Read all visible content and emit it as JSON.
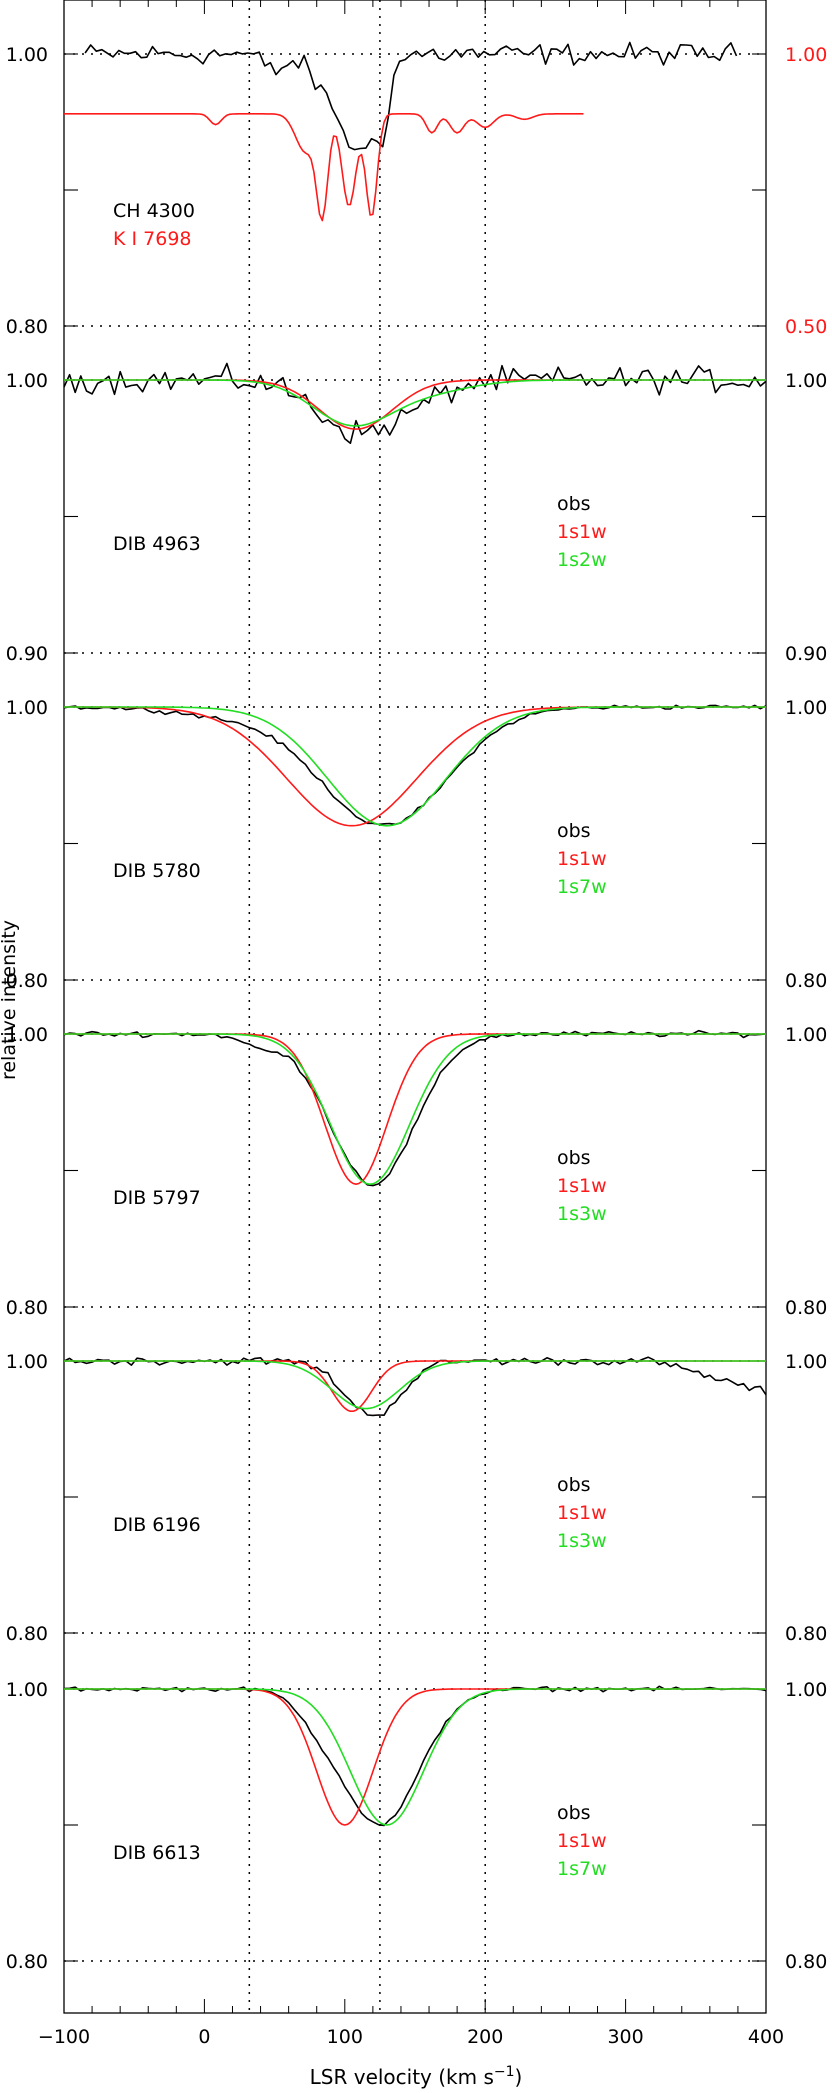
{
  "figure": {
    "xlabel": "LSR velocity (km s",
    "xlabel_sup": "−1",
    "xlabel_close": ")",
    "ylabel": "relative intensity",
    "x_tick_labels": [
      "−100",
      "0",
      "100",
      "200",
      "300",
      "400"
    ]
  },
  "colors": {
    "obs": "#000000",
    "model_a": "#ff1a1a",
    "model_b": "#22dd22"
  },
  "chart_data": {
    "type": "line",
    "xlim": [
      -100,
      400
    ],
    "x_ticks": [
      -100,
      0,
      100,
      200,
      300,
      400
    ],
    "reference_lines_x": [
      32,
      125,
      200
    ],
    "panels": [
      {
        "id": "ch-ki",
        "ylim": [
          0.8,
          1.0
        ],
        "ylim_right": [
          0.5,
          1.0
        ],
        "left_labels": [
          "1.00",
          "0.80"
        ],
        "right_labels": [
          "1.00",
          "0.50"
        ],
        "labels": [
          {
            "text": "CH 4300",
            "color": "#000000"
          },
          {
            "text": "K I 7698",
            "color": "#ff1a1a"
          }
        ],
        "series": [
          {
            "name": "CH 4300",
            "color": "#000000",
            "axis": "left",
            "noise": 0.006,
            "x_range": [
              -85,
              380
            ],
            "profile": [
              [
                112,
                12,
                0.07
              ],
              [
                128,
                4,
                0.03
              ],
              [
                88,
                12,
                0.025
              ],
              [
                50,
                8,
                0.012
              ]
            ]
          },
          {
            "name": "K I 7698",
            "color": "#ff1a1a",
            "axis": "right",
            "offset": 0.89,
            "x_range": [
              -100,
              270
            ],
            "profile": [
              [
                84,
                4,
                0.18
              ],
              [
                103,
                5,
                0.17
              ],
              [
                119,
                4,
                0.19
              ],
              [
                72,
                7,
                0.07
              ],
              [
                8,
                4,
                0.02
              ],
              [
                162,
                4,
                0.035
              ],
              [
                180,
                5,
                0.035
              ],
              [
                200,
                6,
                0.025
              ],
              [
                228,
                6,
                0.01
              ]
            ]
          }
        ]
      },
      {
        "id": "dib-4963",
        "ylim": [
          0.9,
          1.0
        ],
        "left_labels": [
          "1.00",
          "0.90"
        ],
        "right_labels": [
          "1.00",
          "0.90"
        ],
        "feature": "DIB 4963",
        "legend": [
          {
            "text": "obs",
            "color": "#000000"
          },
          {
            "text": "1s1w",
            "color": "#ff1a1a"
          },
          {
            "text": "1s2w",
            "color": "#22dd22"
          }
        ],
        "series": [
          {
            "name": "obs",
            "color": "#000000",
            "noise": 0.0035,
            "x_range": [
              -100,
              400
            ],
            "profile": [
              [
                108,
                28,
                0.018
              ],
              [
                150,
                25,
                0.005
              ]
            ]
          },
          {
            "name": "1s1w",
            "color": "#ff1a1a",
            "x_range": [
              -100,
              400
            ],
            "profile": [
              [
                108,
                26,
                0.018
              ]
            ]
          },
          {
            "name": "1s2w",
            "color": "#22dd22",
            "x_range": [
              -100,
              400
            ],
            "profile": [
              [
                105,
                28,
                0.016
              ],
              [
                160,
                30,
                0.004
              ]
            ]
          }
        ]
      },
      {
        "id": "dib-5780",
        "ylim": [
          0.8,
          1.0
        ],
        "left_labels": [
          "1.00",
          "0.80"
        ],
        "right_labels": [
          "1.00",
          "0.80"
        ],
        "feature": "DIB 5780",
        "legend": [
          {
            "text": "obs",
            "color": "#000000"
          },
          {
            "text": "1s1w",
            "color": "#ff1a1a"
          },
          {
            "text": "1s7w",
            "color": "#22dd22"
          }
        ],
        "series": [
          {
            "name": "obs",
            "color": "#000000",
            "noise": 0.0012,
            "x_range": [
              -100,
              400
            ],
            "profile": [
              [
                128,
                45,
                0.087
              ],
              [
                20,
                40,
                0.006
              ]
            ]
          },
          {
            "name": "1s1w",
            "color": "#ff1a1a",
            "x_range": [
              -100,
              400
            ],
            "profile": [
              [
                105,
                46,
                0.087
              ]
            ]
          },
          {
            "name": "1s7w",
            "color": "#22dd22",
            "x_range": [
              -100,
              400
            ],
            "profile": [
              [
                130,
                42,
                0.087
              ]
            ]
          }
        ]
      },
      {
        "id": "dib-5797",
        "ylim": [
          0.8,
          1.0
        ],
        "left_labels": [
          "1.00",
          "0.80"
        ],
        "right_labels": [
          "1.00",
          "0.80"
        ],
        "feature": "DIB 5797",
        "legend": [
          {
            "text": "obs",
            "color": "#000000"
          },
          {
            "text": "1s1w",
            "color": "#ff1a1a"
          },
          {
            "text": "1s3w",
            "color": "#22dd22"
          }
        ],
        "series": [
          {
            "name": "obs",
            "color": "#000000",
            "noise": 0.0015,
            "x_range": [
              -100,
              400
            ],
            "profile": [
              [
                120,
                30,
                0.11
              ],
              [
                40,
                14,
                0.008
              ]
            ]
          },
          {
            "name": "1s1w",
            "color": "#ff1a1a",
            "x_range": [
              -100,
              400
            ],
            "profile": [
              [
                108,
                22,
                0.11
              ]
            ]
          },
          {
            "name": "1s3w",
            "color": "#22dd22",
            "x_range": [
              -100,
              400
            ],
            "profile": [
              [
                118,
                28,
                0.11
              ]
            ]
          }
        ]
      },
      {
        "id": "dib-6196",
        "ylim": [
          0.8,
          1.0
        ],
        "left_labels": [
          "1.00",
          "0.80"
        ],
        "right_labels": [
          "1.00",
          "0.80"
        ],
        "feature": "DIB 6196",
        "legend": [
          {
            "text": "obs",
            "color": "#000000"
          },
          {
            "text": "1s1w",
            "color": "#ff1a1a"
          },
          {
            "text": "1s3w",
            "color": "#22dd22"
          }
        ],
        "series": [
          {
            "name": "obs",
            "color": "#000000",
            "noise": 0.0022,
            "x_range": [
              -100,
              400
            ],
            "profile": [
              [
                120,
                20,
                0.04
              ]
            ],
            "tail_drop": [
              320,
              400,
              0.023
            ]
          },
          {
            "name": "1s1w",
            "color": "#ff1a1a",
            "x_range": [
              -100,
              400
            ],
            "profile": [
              [
                105,
                14,
                0.037
              ]
            ]
          },
          {
            "name": "1s3w",
            "color": "#22dd22",
            "x_range": [
              -100,
              400
            ],
            "profile": [
              [
                115,
                24,
                0.035
              ]
            ]
          }
        ]
      },
      {
        "id": "dib-6613",
        "ylim": [
          0.8,
          1.0
        ],
        "left_labels": [
          "1.00",
          "0.80"
        ],
        "right_labels": [
          "1.00",
          "0.80"
        ],
        "feature": "DIB 6613",
        "legend": [
          {
            "text": "obs",
            "color": "#000000"
          },
          {
            "text": "1s1w",
            "color": "#ff1a1a"
          },
          {
            "text": "1s7w",
            "color": "#22dd22"
          }
        ],
        "series": [
          {
            "name": "obs",
            "color": "#000000",
            "noise": 0.0012,
            "x_range": [
              -100,
              400
            ],
            "profile": [
              [
                125,
                28,
                0.1
              ],
              [
                80,
                14,
                0.01
              ]
            ]
          },
          {
            "name": "1s1w",
            "color": "#ff1a1a",
            "x_range": [
              -100,
              400
            ],
            "profile": [
              [
                100,
                20,
                0.1
              ]
            ]
          },
          {
            "name": "1s7w",
            "color": "#22dd22",
            "x_range": [
              -100,
              400
            ],
            "profile": [
              [
                130,
                26,
                0.1
              ]
            ]
          }
        ]
      }
    ]
  }
}
